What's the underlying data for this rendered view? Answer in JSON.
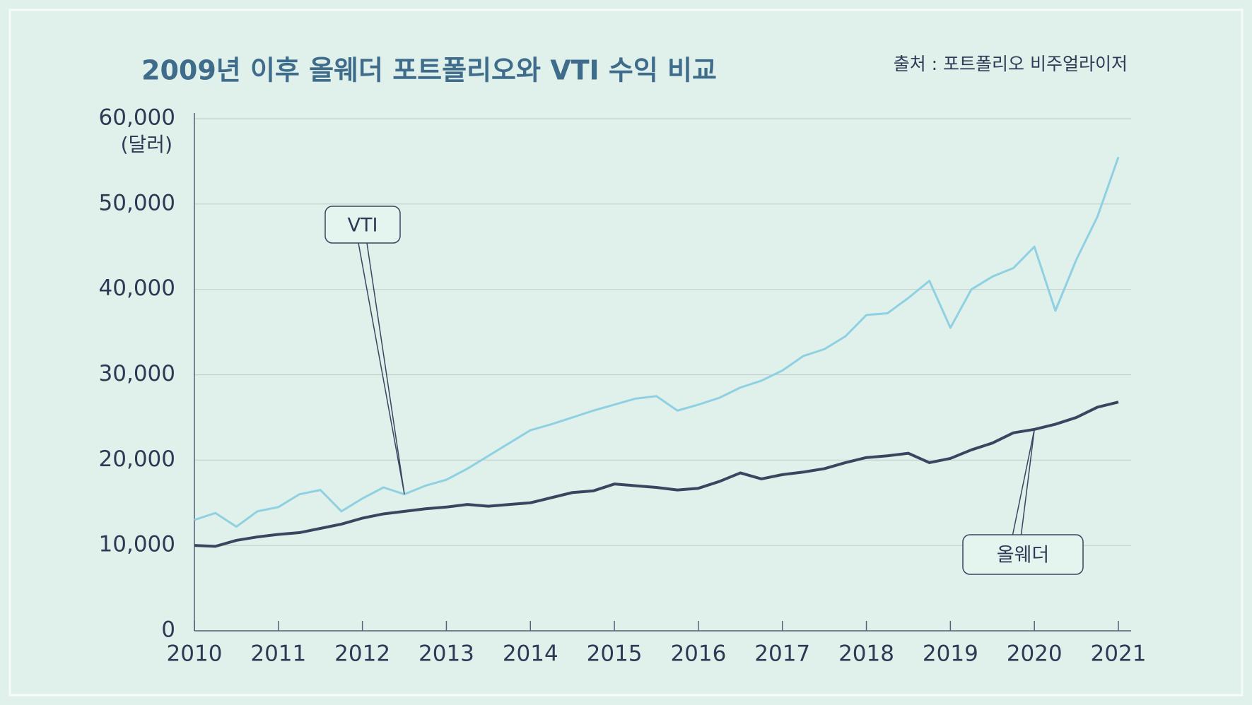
{
  "chart_data": {
    "type": "line",
    "title": "2009년 이후 올웨더 포트폴리오와 VTI 수익 비교",
    "source": "출처 : 포트폴리오 비주얼라이저",
    "y_label": "(달러)",
    "x": [
      2010,
      2010.25,
      2010.5,
      2010.75,
      2011,
      2011.25,
      2011.5,
      2011.75,
      2012,
      2012.25,
      2012.5,
      2012.75,
      2013,
      2013.25,
      2013.5,
      2013.75,
      2014,
      2014.25,
      2014.5,
      2014.75,
      2015,
      2015.25,
      2015.5,
      2015.75,
      2016,
      2016.25,
      2016.5,
      2016.75,
      2017,
      2017.25,
      2017.5,
      2017.75,
      2018,
      2018.25,
      2018.5,
      2018.75,
      2019,
      2019.25,
      2019.5,
      2019.75,
      2020,
      2020.25,
      2020.5,
      2020.75,
      2021
    ],
    "series": [
      {
        "name": "VTI",
        "color": "#8fd0e2",
        "values": [
          13000,
          13800,
          12200,
          14000,
          14500,
          16000,
          16500,
          14000,
          15500,
          16800,
          16000,
          17000,
          17700,
          19000,
          20500,
          22000,
          23500,
          24200,
          25000,
          25800,
          26500,
          27200,
          27500,
          25800,
          26500,
          27300,
          28500,
          29300,
          30500,
          32200,
          33000,
          34500,
          37000,
          37200,
          39000,
          41000,
          35500,
          40000,
          41500,
          42500,
          45000,
          37500,
          43500,
          48500,
          55500
        ]
      },
      {
        "name": "올웨더",
        "color": "#3a4560",
        "values": [
          10000,
          9900,
          10600,
          11000,
          11300,
          11500,
          12000,
          12500,
          13200,
          13700,
          14000,
          14300,
          14500,
          14800,
          14600,
          14800,
          15000,
          15600,
          16200,
          16400,
          17200,
          17000,
          16800,
          16500,
          16700,
          17500,
          18500,
          17800,
          18300,
          18600,
          19000,
          19700,
          20300,
          20500,
          20800,
          19700,
          20200,
          21200,
          22000,
          23200,
          23600,
          24200,
          25000,
          26200,
          26800
        ]
      }
    ],
    "xlim": [
      2010,
      2021
    ],
    "xticks": [
      2010,
      2011,
      2012,
      2013,
      2014,
      2015,
      2016,
      2017,
      2018,
      2019,
      2020,
      2021
    ],
    "ylim": [
      0,
      60000
    ],
    "yticks": [
      0,
      {
        "value": 10000,
        "label": "10,000"
      },
      {
        "value": 20000,
        "label": "20,000"
      },
      {
        "value": 30000,
        "label": "30,000"
      },
      {
        "value": 40000,
        "label": "40,000"
      },
      {
        "value": 50000,
        "label": "50,000"
      },
      {
        "value": 60000,
        "label": "60,000"
      }
    ],
    "grid": true
  }
}
